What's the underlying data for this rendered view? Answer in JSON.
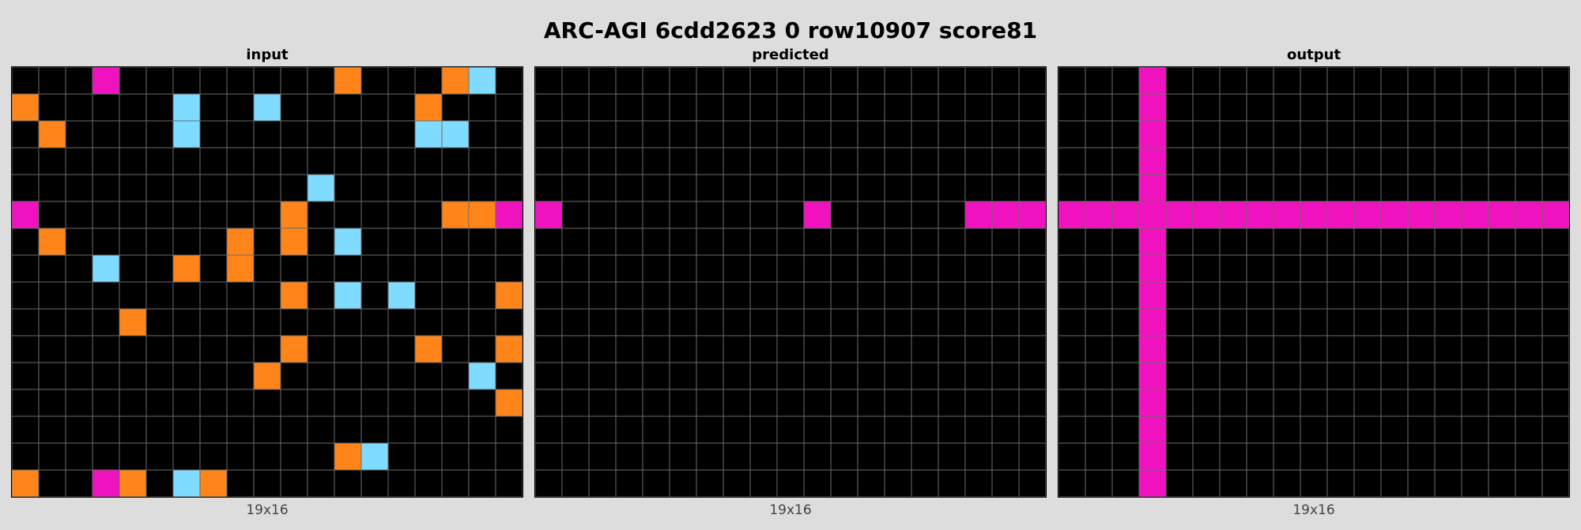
{
  "title": "ARC-AGI 6cdd2623 0 row10907 score81",
  "palette": {
    "0": "#000000",
    "6": "#f012be",
    "7": "#ff851b",
    "8": "#7fdbff"
  },
  "panels": [
    {
      "title": "input",
      "dims": "19x16",
      "grid": [
        [
          0,
          0,
          0,
          6,
          0,
          0,
          0,
          0,
          0,
          0,
          0,
          0,
          7,
          0,
          0,
          0,
          7,
          8,
          0
        ],
        [
          7,
          0,
          0,
          0,
          0,
          0,
          8,
          0,
          0,
          8,
          0,
          0,
          0,
          0,
          0,
          7,
          0,
          0,
          0
        ],
        [
          0,
          7,
          0,
          0,
          0,
          0,
          8,
          0,
          0,
          0,
          0,
          0,
          0,
          0,
          0,
          8,
          8,
          0,
          0
        ],
        [
          0,
          0,
          0,
          0,
          0,
          0,
          0,
          0,
          0,
          0,
          0,
          0,
          0,
          0,
          0,
          0,
          0,
          0,
          0
        ],
        [
          0,
          0,
          0,
          0,
          0,
          0,
          0,
          0,
          0,
          0,
          0,
          8,
          0,
          0,
          0,
          0,
          0,
          0,
          0
        ],
        [
          6,
          0,
          0,
          0,
          0,
          0,
          0,
          0,
          0,
          0,
          7,
          0,
          0,
          0,
          0,
          0,
          7,
          7,
          6
        ],
        [
          0,
          7,
          0,
          0,
          0,
          0,
          0,
          0,
          7,
          0,
          7,
          0,
          8,
          0,
          0,
          0,
          0,
          0,
          0
        ],
        [
          0,
          0,
          0,
          8,
          0,
          0,
          7,
          0,
          7,
          0,
          0,
          0,
          0,
          0,
          0,
          0,
          0,
          0,
          0
        ],
        [
          0,
          0,
          0,
          0,
          0,
          0,
          0,
          0,
          0,
          0,
          7,
          0,
          8,
          0,
          8,
          0,
          0,
          0,
          7
        ],
        [
          0,
          0,
          0,
          0,
          7,
          0,
          0,
          0,
          0,
          0,
          0,
          0,
          0,
          0,
          0,
          0,
          0,
          0,
          0
        ],
        [
          0,
          0,
          0,
          0,
          0,
          0,
          0,
          0,
          0,
          0,
          7,
          0,
          0,
          0,
          0,
          7,
          0,
          0,
          7
        ],
        [
          0,
          0,
          0,
          0,
          0,
          0,
          0,
          0,
          0,
          7,
          0,
          0,
          0,
          0,
          0,
          0,
          0,
          8,
          0
        ],
        [
          0,
          0,
          0,
          0,
          0,
          0,
          0,
          0,
          0,
          0,
          0,
          0,
          0,
          0,
          0,
          0,
          0,
          0,
          7
        ],
        [
          0,
          0,
          0,
          0,
          0,
          0,
          0,
          0,
          0,
          0,
          0,
          0,
          0,
          0,
          0,
          0,
          0,
          0,
          0
        ],
        [
          0,
          0,
          0,
          0,
          0,
          0,
          0,
          0,
          0,
          0,
          0,
          0,
          7,
          8,
          0,
          0,
          0,
          0,
          0
        ],
        [
          7,
          0,
          0,
          6,
          7,
          0,
          8,
          7,
          0,
          0,
          0,
          0,
          0,
          0,
          0,
          0,
          0,
          0,
          0
        ]
      ]
    },
    {
      "title": "predicted",
      "dims": "19x16",
      "grid": [
        [
          0,
          0,
          0,
          0,
          0,
          0,
          0,
          0,
          0,
          0,
          0,
          0,
          0,
          0,
          0,
          0,
          0,
          0,
          0
        ],
        [
          0,
          0,
          0,
          0,
          0,
          0,
          0,
          0,
          0,
          0,
          0,
          0,
          0,
          0,
          0,
          0,
          0,
          0,
          0
        ],
        [
          0,
          0,
          0,
          0,
          0,
          0,
          0,
          0,
          0,
          0,
          0,
          0,
          0,
          0,
          0,
          0,
          0,
          0,
          0
        ],
        [
          0,
          0,
          0,
          0,
          0,
          0,
          0,
          0,
          0,
          0,
          0,
          0,
          0,
          0,
          0,
          0,
          0,
          0,
          0
        ],
        [
          0,
          0,
          0,
          0,
          0,
          0,
          0,
          0,
          0,
          0,
          0,
          0,
          0,
          0,
          0,
          0,
          0,
          0,
          0
        ],
        [
          6,
          0,
          0,
          0,
          0,
          0,
          0,
          0,
          0,
          0,
          6,
          0,
          0,
          0,
          0,
          0,
          6,
          6,
          6
        ],
        [
          0,
          0,
          0,
          0,
          0,
          0,
          0,
          0,
          0,
          0,
          0,
          0,
          0,
          0,
          0,
          0,
          0,
          0,
          0
        ],
        [
          0,
          0,
          0,
          0,
          0,
          0,
          0,
          0,
          0,
          0,
          0,
          0,
          0,
          0,
          0,
          0,
          0,
          0,
          0
        ],
        [
          0,
          0,
          0,
          0,
          0,
          0,
          0,
          0,
          0,
          0,
          0,
          0,
          0,
          0,
          0,
          0,
          0,
          0,
          0
        ],
        [
          0,
          0,
          0,
          0,
          0,
          0,
          0,
          0,
          0,
          0,
          0,
          0,
          0,
          0,
          0,
          0,
          0,
          0,
          0
        ],
        [
          0,
          0,
          0,
          0,
          0,
          0,
          0,
          0,
          0,
          0,
          0,
          0,
          0,
          0,
          0,
          0,
          0,
          0,
          0
        ],
        [
          0,
          0,
          0,
          0,
          0,
          0,
          0,
          0,
          0,
          0,
          0,
          0,
          0,
          0,
          0,
          0,
          0,
          0,
          0
        ],
        [
          0,
          0,
          0,
          0,
          0,
          0,
          0,
          0,
          0,
          0,
          0,
          0,
          0,
          0,
          0,
          0,
          0,
          0,
          0
        ],
        [
          0,
          0,
          0,
          0,
          0,
          0,
          0,
          0,
          0,
          0,
          0,
          0,
          0,
          0,
          0,
          0,
          0,
          0,
          0
        ],
        [
          0,
          0,
          0,
          0,
          0,
          0,
          0,
          0,
          0,
          0,
          0,
          0,
          0,
          0,
          0,
          0,
          0,
          0,
          0
        ],
        [
          0,
          0,
          0,
          0,
          0,
          0,
          0,
          0,
          0,
          0,
          0,
          0,
          0,
          0,
          0,
          0,
          0,
          0,
          0
        ]
      ]
    },
    {
      "title": "output",
      "dims": "19x16",
      "grid": [
        [
          0,
          0,
          0,
          6,
          0,
          0,
          0,
          0,
          0,
          0,
          0,
          0,
          0,
          0,
          0,
          0,
          0,
          0,
          0
        ],
        [
          0,
          0,
          0,
          6,
          0,
          0,
          0,
          0,
          0,
          0,
          0,
          0,
          0,
          0,
          0,
          0,
          0,
          0,
          0
        ],
        [
          0,
          0,
          0,
          6,
          0,
          0,
          0,
          0,
          0,
          0,
          0,
          0,
          0,
          0,
          0,
          0,
          0,
          0,
          0
        ],
        [
          0,
          0,
          0,
          6,
          0,
          0,
          0,
          0,
          0,
          0,
          0,
          0,
          0,
          0,
          0,
          0,
          0,
          0,
          0
        ],
        [
          0,
          0,
          0,
          6,
          0,
          0,
          0,
          0,
          0,
          0,
          0,
          0,
          0,
          0,
          0,
          0,
          0,
          0,
          0
        ],
        [
          6,
          6,
          6,
          6,
          6,
          6,
          6,
          6,
          6,
          6,
          6,
          6,
          6,
          6,
          6,
          6,
          6,
          6,
          6
        ],
        [
          0,
          0,
          0,
          6,
          0,
          0,
          0,
          0,
          0,
          0,
          0,
          0,
          0,
          0,
          0,
          0,
          0,
          0,
          0
        ],
        [
          0,
          0,
          0,
          6,
          0,
          0,
          0,
          0,
          0,
          0,
          0,
          0,
          0,
          0,
          0,
          0,
          0,
          0,
          0
        ],
        [
          0,
          0,
          0,
          6,
          0,
          0,
          0,
          0,
          0,
          0,
          0,
          0,
          0,
          0,
          0,
          0,
          0,
          0,
          0
        ],
        [
          0,
          0,
          0,
          6,
          0,
          0,
          0,
          0,
          0,
          0,
          0,
          0,
          0,
          0,
          0,
          0,
          0,
          0,
          0
        ],
        [
          0,
          0,
          0,
          6,
          0,
          0,
          0,
          0,
          0,
          0,
          0,
          0,
          0,
          0,
          0,
          0,
          0,
          0,
          0
        ],
        [
          0,
          0,
          0,
          6,
          0,
          0,
          0,
          0,
          0,
          0,
          0,
          0,
          0,
          0,
          0,
          0,
          0,
          0,
          0
        ],
        [
          0,
          0,
          0,
          6,
          0,
          0,
          0,
          0,
          0,
          0,
          0,
          0,
          0,
          0,
          0,
          0,
          0,
          0,
          0
        ],
        [
          0,
          0,
          0,
          6,
          0,
          0,
          0,
          0,
          0,
          0,
          0,
          0,
          0,
          0,
          0,
          0,
          0,
          0,
          0
        ],
        [
          0,
          0,
          0,
          6,
          0,
          0,
          0,
          0,
          0,
          0,
          0,
          0,
          0,
          0,
          0,
          0,
          0,
          0,
          0
        ],
        [
          0,
          0,
          0,
          6,
          0,
          0,
          0,
          0,
          0,
          0,
          0,
          0,
          0,
          0,
          0,
          0,
          0,
          0,
          0
        ]
      ]
    }
  ]
}
